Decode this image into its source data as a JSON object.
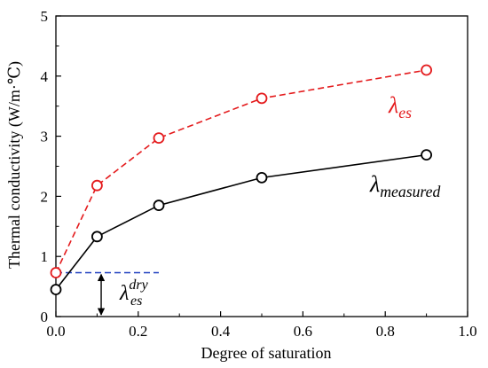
{
  "chart_data": {
    "type": "line",
    "xlabel": "Degree of saturation",
    "ylabel": "Thermal conductivity  (W/m·℃)",
    "xlim": [
      0.0,
      1.0
    ],
    "ylim": [
      0,
      5
    ],
    "xticks": [
      "0.0",
      "0.2",
      "0.4",
      "0.6",
      "0.8",
      "1.0"
    ],
    "yticks": [
      "0",
      "1",
      "2",
      "3",
      "4",
      "5"
    ],
    "grid": false,
    "series": [
      {
        "name": "λmeasured",
        "label_main": "λ",
        "label_sub": "measured",
        "color": "#000000",
        "line_style": "solid",
        "marker": "open-circle",
        "x": [
          0.0,
          0.1,
          0.25,
          0.5,
          0.9
        ],
        "y": [
          0.45,
          1.33,
          1.85,
          2.31,
          2.69
        ]
      },
      {
        "name": "λes",
        "label_main": "λ",
        "label_sub": "es",
        "color": "#e41a1c",
        "line_style": "dashed",
        "marker": "open-circle",
        "x": [
          0.0,
          0.1,
          0.25,
          0.5,
          0.9
        ],
        "y": [
          0.73,
          2.18,
          2.97,
          3.63,
          4.1
        ]
      }
    ],
    "annotation": {
      "label_main": "λ",
      "label_sub": "es",
      "label_sup": "dry",
      "reference_y": 0.73,
      "reference_x_end": 0.25,
      "reference_color": "#1f3fbf",
      "arrow_x": 0.11,
      "arrow_from_y": 0,
      "arrow_to_y": 0.73
    }
  }
}
